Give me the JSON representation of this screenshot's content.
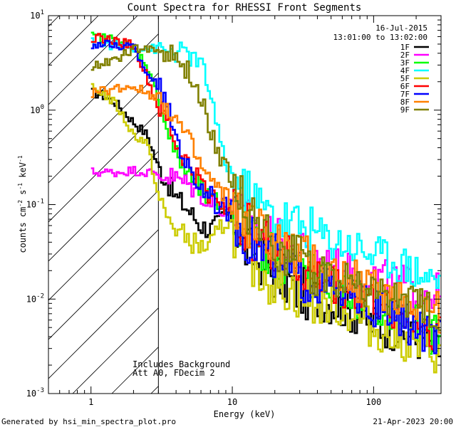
{
  "chart_data": {
    "type": "line",
    "title": "Count Spectra for RHESSI Front Segments",
    "xlabel": "Energy (keV)",
    "ylabel_parts": {
      "a": "counts cm",
      "b": "-2",
      "c": " s",
      "d": "-1",
      "e": " keV",
      "f": "-1"
    },
    "xscale": "log",
    "yscale": "log",
    "xlim": [
      0.5,
      300
    ],
    "ylim": [
      0.001,
      10
    ],
    "x_ticks": [
      {
        "v": 1,
        "label": "1"
      },
      {
        "v": 10,
        "label": "10"
      },
      {
        "v": 100,
        "label": "100"
      }
    ],
    "y_ticks": [
      {
        "v": 10,
        "base": "10",
        "exp": "1"
      },
      {
        "v": 1,
        "base": "10",
        "exp": "0"
      },
      {
        "v": 0.1,
        "base": "10",
        "exp": "-1"
      },
      {
        "v": 0.01,
        "base": "10",
        "exp": "-2"
      },
      {
        "v": 0.001,
        "base": "10",
        "exp": "-3"
      }
    ],
    "hatch_region_keV": [
      0.5,
      3.0
    ],
    "date": "16-Jul-2015",
    "time_range": "13:01:00 to 13:02:00",
    "annotations": [
      "Includes Background",
      "Att A0, FDecim 2"
    ],
    "energies": [
      1,
      1.2,
      1.5,
      2,
      2.5,
      3,
      3.5,
      4,
      5,
      6,
      7,
      8,
      9,
      10,
      12,
      15,
      20,
      25,
      30,
      40,
      50,
      60,
      80,
      100,
      150,
      200,
      250,
      300
    ],
    "series": [
      {
        "name": "1F",
        "color": "#000000",
        "values": [
          1.55,
          1.45,
          1.2,
          0.75,
          0.55,
          0.25,
          0.17,
          0.12,
          0.085,
          0.06,
          0.055,
          0.062,
          0.085,
          0.075,
          0.035,
          0.028,
          0.018,
          0.015,
          0.012,
          0.01,
          0.009,
          0.008,
          0.0065,
          0.0055,
          0.0045,
          0.0038,
          0.0032,
          0.0028
        ]
      },
      {
        "name": "2F",
        "color": "#ff00ff",
        "values": [
          0.22,
          0.22,
          0.22,
          0.23,
          0.22,
          0.21,
          0.2,
          0.19,
          0.16,
          0.13,
          0.11,
          0.1,
          0.095,
          0.09,
          0.07,
          0.055,
          0.04,
          0.032,
          0.028,
          0.025,
          0.022,
          0.02,
          0.018,
          0.017,
          0.015,
          0.013,
          0.012,
          0.011
        ]
      },
      {
        "name": "3F",
        "color": "#00ff00",
        "values": [
          6,
          5.8,
          5.6,
          4.6,
          3,
          1.3,
          0.6,
          0.33,
          0.2,
          0.14,
          0.11,
          0.1,
          0.09,
          0.082,
          0.055,
          0.04,
          0.028,
          0.022,
          0.019,
          0.016,
          0.014,
          0.012,
          0.01,
          0.0085,
          0.0065,
          0.0052,
          0.0044,
          0.0038
        ]
      },
      {
        "name": "4F",
        "color": "#00ffff",
        "values": [
          5.2,
          5,
          4.9,
          4.6,
          4.5,
          4.4,
          4.2,
          4.1,
          3.8,
          3,
          1.6,
          0.5,
          0.28,
          0.2,
          0.14,
          0.1,
          0.075,
          0.065,
          0.06,
          0.05,
          0.042,
          0.04,
          0.035,
          0.03,
          0.025,
          0.02,
          0.017,
          0.015
        ]
      },
      {
        "name": "5F",
        "color": "#cccc00",
        "values": [
          1.7,
          1.55,
          1.15,
          0.55,
          0.45,
          0.12,
          0.07,
          0.055,
          0.042,
          0.035,
          0.037,
          0.05,
          0.07,
          0.06,
          0.03,
          0.022,
          0.015,
          0.013,
          0.011,
          0.009,
          0.0085,
          0.008,
          0.006,
          0.0048,
          0.0038,
          0.0032,
          0.0028,
          0.0025
        ]
      },
      {
        "name": "6F",
        "color": "#ff0000",
        "values": [
          5.9,
          5.7,
          5.4,
          4.9,
          2.2,
          1.05,
          0.75,
          0.42,
          0.25,
          0.17,
          0.13,
          0.11,
          0.1,
          0.09,
          0.06,
          0.045,
          0.032,
          0.025,
          0.02,
          0.017,
          0.015,
          0.013,
          0.011,
          0.0095,
          0.0075,
          0.006,
          0.005,
          0.0045
        ]
      },
      {
        "name": "7F",
        "color": "#0000ff",
        "values": [
          5,
          4.9,
          4.8,
          4.7,
          2.5,
          1.8,
          1,
          0.55,
          0.22,
          0.16,
          0.12,
          0.1,
          0.09,
          0.085,
          0.05,
          0.038,
          0.027,
          0.021,
          0.018,
          0.015,
          0.013,
          0.011,
          0.0095,
          0.008,
          0.0062,
          0.005,
          0.0042,
          0.0037
        ]
      },
      {
        "name": "8F",
        "color": "#ff8000",
        "values": [
          1.5,
          1.6,
          1.7,
          1.8,
          1.5,
          1.4,
          1.1,
          0.8,
          0.45,
          0.25,
          0.18,
          0.14,
          0.12,
          0.1,
          0.07,
          0.055,
          0.04,
          0.032,
          0.027,
          0.023,
          0.02,
          0.018,
          0.015,
          0.013,
          0.011,
          0.0095,
          0.008,
          0.007
        ]
      },
      {
        "name": "9F",
        "color": "#808000",
        "values": [
          2.9,
          3.1,
          3.5,
          4.3,
          4.6,
          4.3,
          3.9,
          3.4,
          2.4,
          1.25,
          0.65,
          0.38,
          0.25,
          0.18,
          0.1,
          0.07,
          0.04,
          0.03,
          0.025,
          0.02,
          0.018,
          0.016,
          0.014,
          0.012,
          0.01,
          0.0085,
          0.0075,
          0.0068
        ]
      }
    ]
  },
  "footer": {
    "left": "Generated by hsi_min_spectra_plot.pro",
    "right": "21-Apr-2023 20:00"
  }
}
